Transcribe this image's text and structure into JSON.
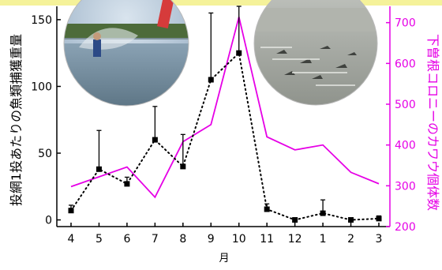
{
  "chart_data": {
    "type": "line",
    "xlabel": "月",
    "categories": [
      "4",
      "5",
      "6",
      "7",
      "8",
      "9",
      "10",
      "11",
      "12",
      "1",
      "2",
      "3"
    ],
    "y_left": {
      "label": "投網1投あたりの魚類捕獲重量",
      "lim": [
        -5,
        160
      ],
      "ticks": [
        0,
        50,
        100,
        150
      ]
    },
    "y_right": {
      "label": "下曽根コロニーのカワウ個体数",
      "lim": [
        200,
        740
      ],
      "ticks": [
        200,
        300,
        400,
        500,
        600,
        700
      ]
    },
    "series": [
      {
        "axis": "left",
        "style": "dotted-black-square-markers",
        "values": [
          7,
          38,
          27,
          60,
          40,
          105,
          125,
          8,
          0,
          5,
          0,
          1
        ],
        "error_upper": [
          11,
          67,
          32,
          85,
          64,
          155,
          160,
          12,
          0,
          15,
          0,
          3
        ]
      },
      {
        "axis": "right",
        "style": "solid-magenta",
        "values": [
          298,
          322,
          346,
          272,
          408,
          450,
          714,
          420,
          388,
          400,
          333,
          305
        ]
      }
    ],
    "colors": {
      "right_axis": "#e600e6",
      "left_axis": "#000000",
      "header_band": "#f5f29a"
    },
    "grid": false,
    "photos": [
      "cast-net-fishing-photo",
      "cormorants-on-water-photo"
    ]
  }
}
